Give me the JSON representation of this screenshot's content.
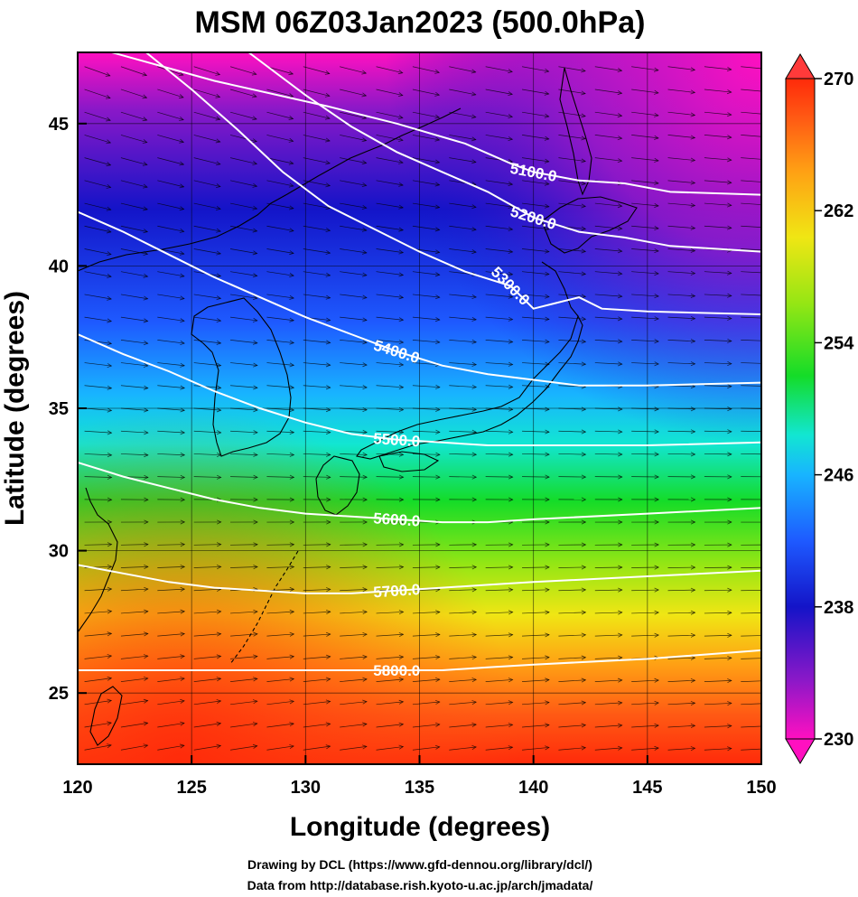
{
  "title": "MSM 06Z03Jan2023 (500.0hPa)",
  "chart_data": {
    "type": "heatmap",
    "title": "MSM 06Z03Jan2023 (500.0hPa)",
    "xlabel": "Longitude (degrees)",
    "ylabel": "Latitude  (degrees)",
    "xlim": [
      120,
      150
    ],
    "ylim": [
      22.5,
      47.5
    ],
    "x_ticks": [
      "120",
      "125",
      "130",
      "135",
      "140",
      "145",
      "150"
    ],
    "y_ticks": [
      "25",
      "30",
      "35",
      "40",
      "45"
    ],
    "grid": true,
    "colorbar": {
      "min": 230,
      "max": 270,
      "tick_labels": [
        "230",
        "238",
        "246",
        "254",
        "262",
        "270"
      ],
      "colors": [
        "#ff10c0",
        "#8a18c8",
        "#1414c8",
        "#1e5aff",
        "#18b4ff",
        "#12e6d2",
        "#14dc28",
        "#96e614",
        "#f0e614",
        "#ffa014",
        "#ff5a14",
        "#ff2a0a"
      ]
    },
    "contours": [
      {
        "label": "5100.0",
        "points": [
          [
            121.5,
            47.5
          ],
          [
            126,
            46.5
          ],
          [
            131,
            45.6
          ],
          [
            134,
            45
          ],
          [
            137,
            44.3
          ],
          [
            139,
            43.6
          ],
          [
            140,
            43.3
          ],
          [
            142,
            43
          ],
          [
            144,
            42.9
          ],
          [
            146,
            42.6
          ],
          [
            150,
            42.5
          ]
        ]
      },
      {
        "label": "5200.0",
        "points": [
          [
            127.5,
            47.5
          ],
          [
            130,
            46
          ],
          [
            132,
            44.9
          ],
          [
            134,
            44
          ],
          [
            136,
            43.3
          ],
          [
            138,
            42.6
          ],
          [
            140,
            41.7
          ],
          [
            142,
            41.2
          ],
          [
            144,
            41
          ],
          [
            146,
            40.7
          ],
          [
            150,
            40.5
          ]
        ]
      },
      {
        "label": "5300.0",
        "points": [
          [
            123,
            47.5
          ],
          [
            125,
            46.2
          ],
          [
            127,
            44.8
          ],
          [
            129,
            43.3
          ],
          [
            131,
            42.1
          ],
          [
            133,
            41.3
          ],
          [
            135,
            40.5
          ],
          [
            137,
            39.8
          ],
          [
            139,
            39.3
          ],
          [
            140,
            38.5
          ],
          [
            141,
            38.7
          ],
          [
            142,
            38.9
          ],
          [
            143,
            38.5
          ],
          [
            145,
            38.4
          ],
          [
            150,
            38.3
          ]
        ]
      },
      {
        "label": "5400.0",
        "points": [
          [
            120,
            41.9
          ],
          [
            122,
            41.2
          ],
          [
            124,
            40.4
          ],
          [
            126,
            39.6
          ],
          [
            128,
            38.9
          ],
          [
            130,
            38.2
          ],
          [
            132,
            37.6
          ],
          [
            134,
            37
          ],
          [
            136,
            36.5
          ],
          [
            138,
            36.2
          ],
          [
            140,
            36
          ],
          [
            142,
            35.8
          ],
          [
            145,
            35.8
          ],
          [
            150,
            35.9
          ]
        ]
      },
      {
        "label": "5500.0",
        "points": [
          [
            120,
            37.6
          ],
          [
            122,
            36.9
          ],
          [
            124,
            36.3
          ],
          [
            126,
            35.6
          ],
          [
            128,
            35
          ],
          [
            130,
            34.5
          ],
          [
            132,
            34.1
          ],
          [
            134,
            33.9
          ],
          [
            136,
            33.8
          ],
          [
            138,
            33.7
          ],
          [
            140,
            33.7
          ],
          [
            145,
            33.7
          ],
          [
            150,
            33.8
          ]
        ]
      },
      {
        "label": "5600.0",
        "points": [
          [
            120,
            33.1
          ],
          [
            122,
            32.6
          ],
          [
            124,
            32.2
          ],
          [
            126,
            31.8
          ],
          [
            128,
            31.5
          ],
          [
            130,
            31.3
          ],
          [
            132,
            31.2
          ],
          [
            134,
            31.1
          ],
          [
            136,
            31
          ],
          [
            138,
            31
          ],
          [
            140,
            31.1
          ],
          [
            145,
            31.3
          ],
          [
            150,
            31.5
          ]
        ]
      },
      {
        "label": "5700.0",
        "points": [
          [
            120,
            29.5
          ],
          [
            122,
            29.2
          ],
          [
            124,
            28.9
          ],
          [
            126,
            28.7
          ],
          [
            128,
            28.6
          ],
          [
            130,
            28.5
          ],
          [
            132,
            28.5
          ],
          [
            134,
            28.6
          ],
          [
            136,
            28.7
          ],
          [
            138,
            28.8
          ],
          [
            140,
            28.9
          ],
          [
            145,
            29.1
          ],
          [
            150,
            29.3
          ]
        ]
      },
      {
        "label": "5800.0",
        "points": [
          [
            120,
            25.8
          ],
          [
            122,
            25.8
          ],
          [
            124,
            25.8
          ],
          [
            126,
            25.8
          ],
          [
            128,
            25.8
          ],
          [
            130,
            25.8
          ],
          [
            132,
            25.8
          ],
          [
            134,
            25.8
          ],
          [
            136,
            25.8
          ],
          [
            138,
            25.9
          ],
          [
            140,
            26
          ],
          [
            145,
            26.2
          ],
          [
            150,
            26.5
          ]
        ]
      }
    ]
  },
  "credits": {
    "line1": "Drawing by DCL (https://www.gfd-dennou.org/library/dcl/)",
    "line2": "Data from http://database.rish.kyoto-u.ac.jp/arch/jmadata/"
  }
}
